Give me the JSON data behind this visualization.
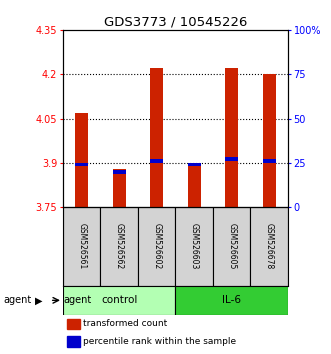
{
  "title": "GDS3773 / 10545226",
  "samples": [
    "GSM526561",
    "GSM526562",
    "GSM526602",
    "GSM526603",
    "GSM526605",
    "GSM526678"
  ],
  "groups": [
    {
      "name": "control",
      "color": "#b3ffb3"
    },
    {
      "name": "IL-6",
      "color": "#33cc33"
    }
  ],
  "transformed_counts": [
    4.07,
    3.88,
    4.22,
    3.9,
    4.22,
    4.2
  ],
  "percentile_ranks": [
    24,
    20,
    26,
    24,
    27,
    26
  ],
  "ylim_left": [
    3.75,
    4.35
  ],
  "yticks_left": [
    3.75,
    3.9,
    4.05,
    4.2,
    4.35
  ],
  "ytick_labels_left": [
    "3.75",
    "3.9",
    "4.05",
    "4.2",
    "4.35"
  ],
  "yticks_right_vals": [
    0,
    25,
    50,
    75,
    100
  ],
  "ytick_labels_right": [
    "0",
    "25",
    "50",
    "75",
    "100%"
  ],
  "bar_color": "#cc2200",
  "percentile_color": "#0000cc",
  "bar_width": 0.35,
  "baseline": 3.75,
  "agent_label": "agent",
  "label_bg": "#d3d3d3",
  "grid_color": "#000000"
}
